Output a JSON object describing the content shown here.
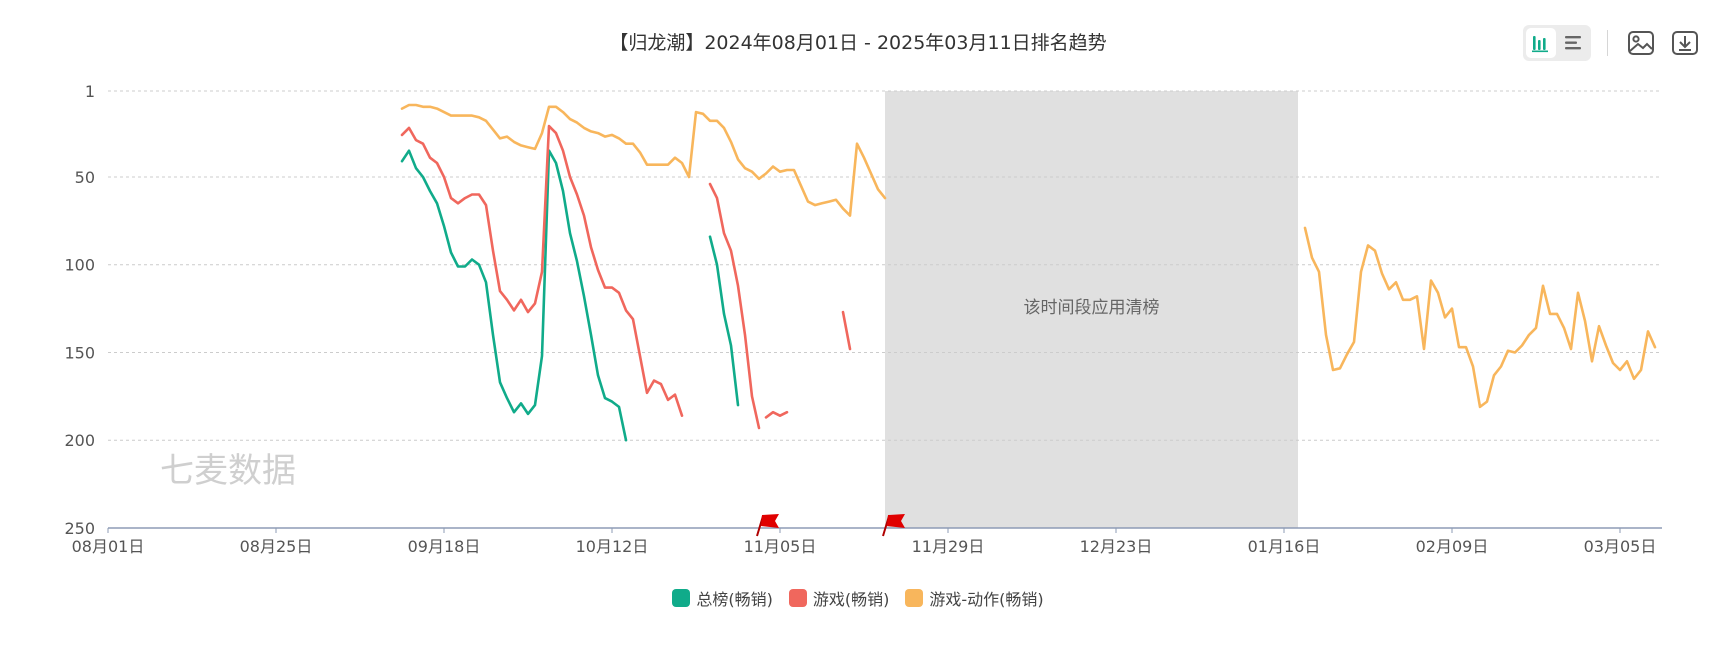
{
  "chart_data": {
    "type": "line",
    "title": "【归龙潮】2024年08月01日 - 2025年03月11日排名趋势",
    "y_axis": {
      "reversed": true,
      "range": [
        1,
        250
      ],
      "ticks": [
        1,
        50,
        100,
        150,
        200,
        250
      ]
    },
    "x_axis": {
      "range": [
        "2024-08-01",
        "2025-03-11"
      ],
      "tick_labels": [
        "08月01日",
        "08月25日",
        "09月18日",
        "10月12日",
        "11月05日",
        "11月29日",
        "12月23日",
        "01月16日",
        "02月09日",
        "03月05日"
      ]
    },
    "grid": true,
    "legend_position": "bottom-center",
    "watermark": "七麦数据",
    "annotations": [
      {
        "type": "shaded-region",
        "from": "2024-11-20",
        "to": "2025-01-18",
        "text": "该时间段应用清榜"
      }
    ],
    "flags": [
      "2024-11-02",
      "2024-11-20"
    ],
    "series": [
      {
        "name": "总榜(畅销)",
        "color": "#10ab8a",
        "segments": [
          [
            [
              "2024-09-12",
              41
            ],
            [
              "2024-09-13",
              35
            ],
            [
              "2024-09-14",
              45
            ],
            [
              "2024-09-15",
              50
            ],
            [
              "2024-09-16",
              58
            ],
            [
              "2024-09-17",
              65
            ],
            [
              "2024-09-18",
              78
            ],
            [
              "2024-09-19",
              93
            ],
            [
              "2024-09-20",
              101
            ],
            [
              "2024-09-21",
              101
            ],
            [
              "2024-09-22",
              97
            ],
            [
              "2024-09-23",
              100
            ],
            [
              "2024-09-24",
              110
            ],
            [
              "2024-09-25",
              140
            ],
            [
              "2024-09-26",
              167
            ],
            [
              "2024-09-27",
              176
            ],
            [
              "2024-09-28",
              184
            ],
            [
              "2024-09-29",
              179
            ],
            [
              "2024-09-30",
              185
            ],
            [
              "2024-10-01",
              180
            ],
            [
              "2024-10-02",
              152
            ],
            [
              "2024-10-03",
              35
            ],
            [
              "2024-10-04",
              42
            ],
            [
              "2024-10-05",
              58
            ],
            [
              "2024-10-06",
              82
            ],
            [
              "2024-10-07",
              98
            ],
            [
              "2024-10-08",
              118
            ],
            [
              "2024-10-09",
              140
            ],
            [
              "2024-10-10",
              163
            ],
            [
              "2024-10-11",
              176
            ],
            [
              "2024-10-12",
              178
            ],
            [
              "2024-10-13",
              181
            ],
            [
              "2024-10-14",
              200
            ]
          ],
          [
            [
              "2024-10-26",
              84
            ],
            [
              "2024-10-27",
              100
            ],
            [
              "2024-10-28",
              128
            ],
            [
              "2024-10-29",
              146
            ],
            [
              "2024-10-30",
              180
            ]
          ]
        ]
      },
      {
        "name": "游戏(畅销)",
        "color": "#f0675d",
        "segments": [
          [
            [
              "2024-09-12",
              26
            ],
            [
              "2024-09-13",
              22
            ],
            [
              "2024-09-14",
              29
            ],
            [
              "2024-09-15",
              31
            ],
            [
              "2024-09-16",
              39
            ],
            [
              "2024-09-17",
              42
            ],
            [
              "2024-09-18",
              50
            ],
            [
              "2024-09-19",
              62
            ],
            [
              "2024-09-20",
              65
            ],
            [
              "2024-09-21",
              62
            ],
            [
              "2024-09-22",
              60
            ],
            [
              "2024-09-23",
              60
            ],
            [
              "2024-09-24",
              66
            ],
            [
              "2024-09-25",
              92
            ],
            [
              "2024-09-26",
              115
            ],
            [
              "2024-09-27",
              120
            ],
            [
              "2024-09-28",
              126
            ],
            [
              "2024-09-29",
              120
            ],
            [
              "2024-09-30",
              127
            ],
            [
              "2024-10-01",
              122
            ],
            [
              "2024-10-02",
              104
            ],
            [
              "2024-10-03",
              21
            ],
            [
              "2024-10-04",
              25
            ],
            [
              "2024-10-05",
              35
            ],
            [
              "2024-10-06",
              50
            ],
            [
              "2024-10-07",
              60
            ],
            [
              "2024-10-08",
              72
            ],
            [
              "2024-10-09",
              90
            ],
            [
              "2024-10-10",
              103
            ],
            [
              "2024-10-11",
              113
            ],
            [
              "2024-10-12",
              113
            ],
            [
              "2024-10-13",
              116
            ],
            [
              "2024-10-14",
              126
            ],
            [
              "2024-10-15",
              131
            ],
            [
              "2024-10-16",
              152
            ],
            [
              "2024-10-17",
              173
            ],
            [
              "2024-10-18",
              166
            ],
            [
              "2024-10-19",
              168
            ],
            [
              "2024-10-20",
              177
            ],
            [
              "2024-10-21",
              174
            ],
            [
              "2024-10-22",
              186
            ]
          ],
          [
            [
              "2024-10-26",
              54
            ],
            [
              "2024-10-27",
              62
            ],
            [
              "2024-10-28",
              82
            ],
            [
              "2024-10-29",
              92
            ],
            [
              "2024-10-30",
              112
            ],
            [
              "2024-10-31",
              140
            ],
            [
              "2024-11-01",
              175
            ],
            [
              "2024-11-02",
              193
            ]
          ],
          [
            [
              "2024-11-03",
              187
            ],
            [
              "2024-11-04",
              184
            ],
            [
              "2024-11-05",
              186
            ],
            [
              "2024-11-06",
              184
            ]
          ],
          [
            [
              "2024-11-14",
              127
            ],
            [
              "2024-11-15",
              148
            ]
          ]
        ]
      },
      {
        "name": "游戏-动作(畅销)",
        "color": "#f8b65c",
        "segments": [
          [
            [
              "2024-09-12",
              11
            ],
            [
              "2024-09-13",
              9
            ],
            [
              "2024-09-14",
              9
            ],
            [
              "2024-09-15",
              10
            ],
            [
              "2024-09-16",
              10
            ],
            [
              "2024-09-17",
              11
            ],
            [
              "2024-09-18",
              13
            ],
            [
              "2024-09-19",
              15
            ],
            [
              "2024-09-20",
              15
            ],
            [
              "2024-09-21",
              15
            ],
            [
              "2024-09-22",
              15
            ],
            [
              "2024-09-23",
              16
            ],
            [
              "2024-09-24",
              18
            ],
            [
              "2024-09-25",
              23
            ],
            [
              "2024-09-26",
              28
            ],
            [
              "2024-09-27",
              27
            ],
            [
              "2024-09-28",
              30
            ],
            [
              "2024-09-29",
              32
            ],
            [
              "2024-09-30",
              33
            ],
            [
              "2024-10-01",
              34
            ],
            [
              "2024-10-02",
              25
            ],
            [
              "2024-10-03",
              10
            ],
            [
              "2024-10-04",
              10
            ],
            [
              "2024-10-05",
              13
            ],
            [
              "2024-10-06",
              17
            ],
            [
              "2024-10-07",
              19
            ],
            [
              "2024-10-08",
              22
            ],
            [
              "2024-10-09",
              24
            ],
            [
              "2024-10-10",
              25
            ],
            [
              "2024-10-11",
              27
            ],
            [
              "2024-10-12",
              26
            ],
            [
              "2024-10-13",
              28
            ],
            [
              "2024-10-14",
              31
            ],
            [
              "2024-10-15",
              31
            ],
            [
              "2024-10-16",
              36
            ],
            [
              "2024-10-17",
              43
            ],
            [
              "2024-10-18",
              43
            ],
            [
              "2024-10-19",
              43
            ],
            [
              "2024-10-20",
              43
            ],
            [
              "2024-10-21",
              39
            ],
            [
              "2024-10-22",
              42
            ],
            [
              "2024-10-23",
              50
            ],
            [
              "2024-10-24",
              13
            ],
            [
              "2024-10-25",
              14
            ],
            [
              "2024-10-26",
              18
            ],
            [
              "2024-10-27",
              18
            ],
            [
              "2024-10-28",
              22
            ],
            [
              "2024-10-29",
              30
            ],
            [
              "2024-10-30",
              40
            ],
            [
              "2024-10-31",
              45
            ],
            [
              "2024-11-01",
              47
            ],
            [
              "2024-11-02",
              51
            ],
            [
              "2024-11-03",
              48
            ],
            [
              "2024-11-04",
              44
            ],
            [
              "2024-11-05",
              47
            ],
            [
              "2024-11-06",
              46
            ],
            [
              "2024-11-07",
              46
            ],
            [
              "2024-11-08",
              55
            ],
            [
              "2024-11-09",
              64
            ],
            [
              "2024-11-10",
              66
            ],
            [
              "2024-11-11",
              65
            ],
            [
              "2024-11-12",
              64
            ],
            [
              "2024-11-13",
              63
            ],
            [
              "2024-11-14",
              68
            ],
            [
              "2024-11-15",
              72
            ],
            [
              "2024-11-16",
              31
            ],
            [
              "2024-11-17",
              39
            ],
            [
              "2024-11-18",
              48
            ],
            [
              "2024-11-19",
              57
            ],
            [
              "2024-11-20",
              62
            ]
          ],
          [
            [
              "2025-01-19",
              79
            ],
            [
              "2025-01-20",
              96
            ],
            [
              "2025-01-21",
              104
            ],
            [
              "2025-01-22",
              140
            ],
            [
              "2025-01-23",
              160
            ],
            [
              "2025-01-24",
              159
            ],
            [
              "2025-01-25",
              151
            ],
            [
              "2025-01-26",
              144
            ],
            [
              "2025-01-27",
              104
            ],
            [
              "2025-01-28",
              89
            ],
            [
              "2025-01-29",
              92
            ],
            [
              "2025-01-30",
              105
            ],
            [
              "2025-01-31",
              114
            ],
            [
              "2025-02-01",
              110
            ],
            [
              "2025-02-02",
              120
            ],
            [
              "2025-02-03",
              120
            ],
            [
              "2025-02-04",
              118
            ],
            [
              "2025-02-05",
              148
            ],
            [
              "2025-02-06",
              109
            ],
            [
              "2025-02-07",
              116
            ],
            [
              "2025-02-08",
              130
            ],
            [
              "2025-02-09",
              125
            ],
            [
              "2025-02-10",
              147
            ],
            [
              "2025-02-11",
              147
            ],
            [
              "2025-02-12",
              158
            ],
            [
              "2025-02-13",
              181
            ],
            [
              "2025-02-14",
              178
            ],
            [
              "2025-02-15",
              163
            ],
            [
              "2025-02-16",
              158
            ],
            [
              "2025-02-17",
              149
            ],
            [
              "2025-02-18",
              150
            ],
            [
              "2025-02-19",
              146
            ],
            [
              "2025-02-20",
              140
            ],
            [
              "2025-02-21",
              136
            ],
            [
              "2025-02-22",
              112
            ],
            [
              "2025-02-23",
              128
            ],
            [
              "2025-02-24",
              128
            ],
            [
              "2025-02-25",
              136
            ],
            [
              "2025-02-26",
              148
            ],
            [
              "2025-02-27",
              116
            ],
            [
              "2025-02-28",
              132
            ],
            [
              "2025-03-01",
              155
            ],
            [
              "2025-03-02",
              135
            ],
            [
              "2025-03-03",
              146
            ],
            [
              "2025-03-04",
              156
            ],
            [
              "2025-03-05",
              160
            ],
            [
              "2025-03-06",
              155
            ],
            [
              "2025-03-07",
              165
            ],
            [
              "2025-03-08",
              160
            ],
            [
              "2025-03-09",
              138
            ],
            [
              "2025-03-10",
              147
            ]
          ]
        ]
      }
    ]
  },
  "toolbar": {
    "icons": [
      "bar-chart-icon",
      "list-icon",
      "image-icon",
      "download-icon"
    ]
  }
}
